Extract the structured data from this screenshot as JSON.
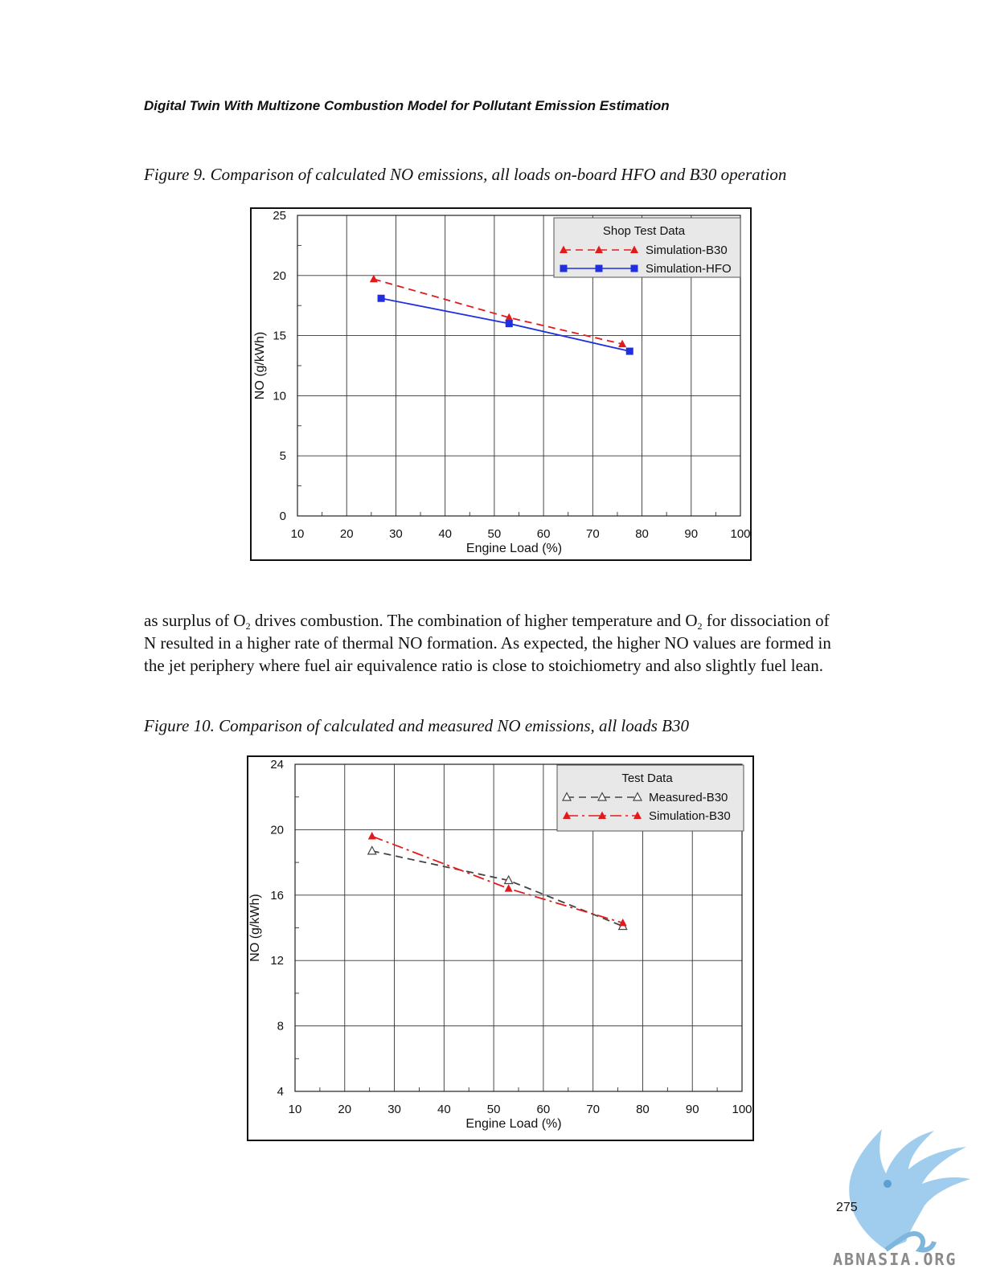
{
  "running_head": "Digital Twin With Multizone Combustion Model for Pollutant Emission Estimation",
  "figure9": {
    "caption": "Figure 9. Comparison of calculated NO emissions, all loads on-board HFO and B30 operation"
  },
  "figure10": {
    "caption": "Figure 10. Comparison of calculated and measured NO emissions, all loads B30"
  },
  "body": {
    "line1_a": "as surplus of O",
    "line1_sub1": "2",
    "line1_b": " drives combustion. The combination of higher temperature and O",
    "line1_sub2": "2",
    "line1_c": " for dissociation of",
    "line2": "N resulted in a higher rate of thermal NO formation. As expected, the higher NO values are formed in",
    "line3": "the jet periphery where fuel air equivalence ratio is close to stoichiometry and also slightly fuel lean."
  },
  "page_number": "275",
  "site": "ABNASIA.ORG",
  "chart_data": [
    {
      "type": "line",
      "title": "",
      "xlabel": "Engine Load (%)",
      "ylabel": "NO (g/kWh)",
      "xlim": [
        10,
        100
      ],
      "ylim": [
        0,
        25
      ],
      "xticks": [
        10,
        20,
        30,
        40,
        50,
        60,
        70,
        80,
        90,
        100
      ],
      "yticks": [
        0,
        5,
        10,
        15,
        20,
        25
      ],
      "grid": true,
      "legend_title": "Shop Test Data",
      "legend_position": "top-right",
      "series": [
        {
          "name": "Simulation-B30",
          "x": [
            25.5,
            53,
            76
          ],
          "y": [
            19.7,
            16.5,
            14.3
          ],
          "color": "#e31a1c",
          "line": "dashed",
          "marker": "triangle-filled"
        },
        {
          "name": "Simulation-HFO",
          "x": [
            27,
            53,
            77.5
          ],
          "y": [
            18.1,
            16.0,
            13.7
          ],
          "color": "#1f2fe0",
          "line": "solid",
          "marker": "square-filled"
        }
      ]
    },
    {
      "type": "line",
      "title": "",
      "xlabel": "Engine Load (%)",
      "ylabel": "NO (g/kWh)",
      "xlim": [
        10,
        100
      ],
      "ylim": [
        4,
        24
      ],
      "xticks": [
        10,
        20,
        30,
        40,
        50,
        60,
        70,
        80,
        90,
        100
      ],
      "yticks": [
        4,
        8,
        12,
        16,
        20,
        24
      ],
      "grid": true,
      "legend_title": "Test Data",
      "legend_position": "top-right",
      "series": [
        {
          "name": "Measured-B30",
          "x": [
            25.5,
            53,
            76
          ],
          "y": [
            18.7,
            16.9,
            14.1
          ],
          "color": "#444444",
          "line": "dashed",
          "marker": "triangle-open"
        },
        {
          "name": "Simulation-B30",
          "x": [
            25.5,
            53,
            76
          ],
          "y": [
            19.6,
            16.4,
            14.3
          ],
          "color": "#e31a1c",
          "line": "dashdot",
          "marker": "triangle-filled"
        }
      ]
    }
  ]
}
